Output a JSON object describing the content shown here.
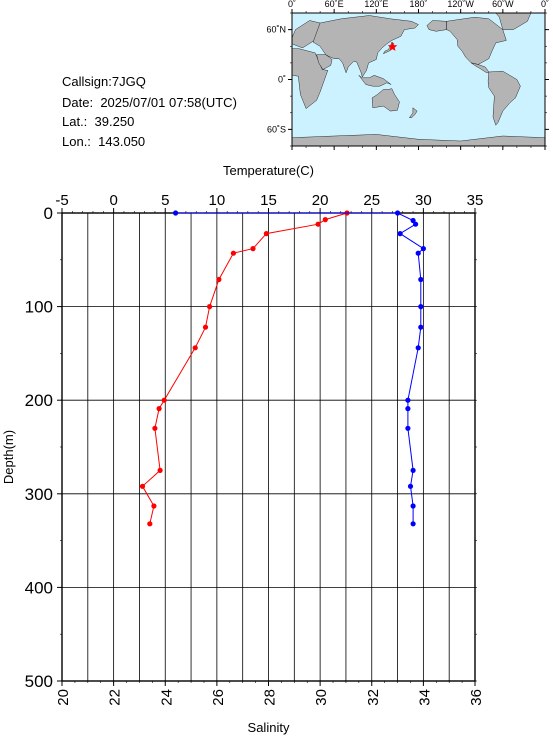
{
  "station": {
    "callsign_label": "Callsign:",
    "callsign": "7JGQ",
    "date_label": "Date:",
    "date": "2025/07/01 07:58(UTC)",
    "lat_label": "Lat.:",
    "lat": "39.250",
    "lon_label": "Lon.:",
    "lon": "143.050"
  },
  "map": {
    "top_labels": [
      "0˚",
      "60˚E",
      "120˚E",
      "180˚",
      "120˚W",
      "60˚W",
      "0˚"
    ],
    "left_labels": [
      "60˚N",
      "0˚",
      "60˚S"
    ],
    "ocean_color": "#ccf2ff",
    "land_color": "#b4b4b4",
    "marker_color": "#ff0000",
    "marker": {
      "lon": 143.05,
      "lat": 39.25
    }
  },
  "chart_data": {
    "type": "line",
    "top_axis": {
      "label": "Temperature(C)",
      "range": [
        -5,
        35
      ],
      "ticks": [
        -5,
        0,
        5,
        10,
        15,
        20,
        25,
        30,
        35
      ]
    },
    "bottom_axis": {
      "label": "Salinity",
      "range": [
        20,
        36
      ],
      "ticks": [
        20,
        22,
        24,
        26,
        28,
        30,
        32,
        34,
        36
      ]
    },
    "y_axis": {
      "label": "Depth(m)",
      "range": [
        0,
        500
      ],
      "inverted": true,
      "ticks": [
        0,
        100,
        200,
        300,
        400,
        500
      ]
    },
    "grid": true,
    "series": [
      {
        "name": "Temperature(C)",
        "axis": "top",
        "color": "#ff0000",
        "points": [
          {
            "value": 22.6,
            "depth": 0
          },
          {
            "value": 20.5,
            "depth": 7
          },
          {
            "value": 19.8,
            "depth": 12
          },
          {
            "value": 14.8,
            "depth": 22
          },
          {
            "value": 13.5,
            "depth": 38
          },
          {
            "value": 11.6,
            "depth": 43
          },
          {
            "value": 10.2,
            "depth": 71
          },
          {
            "value": 9.3,
            "depth": 100
          },
          {
            "value": 8.9,
            "depth": 122
          },
          {
            "value": 7.9,
            "depth": 144
          },
          {
            "value": 4.9,
            "depth": 200
          },
          {
            "value": 4.4,
            "depth": 209
          },
          {
            "value": 4.0,
            "depth": 230
          },
          {
            "value": 4.5,
            "depth": 275
          },
          {
            "value": 2.8,
            "depth": 292
          },
          {
            "value": 3.9,
            "depth": 313
          },
          {
            "value": 3.5,
            "depth": 332
          }
        ]
      },
      {
        "name": "Salinity",
        "axis": "bottom",
        "color": "#0000ff",
        "points": [
          {
            "value": 24.4,
            "depth": 0
          },
          {
            "value": 33.0,
            "depth": 0
          },
          {
            "value": 33.6,
            "depth": 8
          },
          {
            "value": 33.7,
            "depth": 12
          },
          {
            "value": 33.1,
            "depth": 22
          },
          {
            "value": 34.0,
            "depth": 38
          },
          {
            "value": 33.8,
            "depth": 43
          },
          {
            "value": 33.9,
            "depth": 71
          },
          {
            "value": 33.9,
            "depth": 100
          },
          {
            "value": 33.9,
            "depth": 122
          },
          {
            "value": 33.8,
            "depth": 144
          },
          {
            "value": 33.4,
            "depth": 200
          },
          {
            "value": 33.4,
            "depth": 209
          },
          {
            "value": 33.4,
            "depth": 230
          },
          {
            "value": 33.6,
            "depth": 275
          },
          {
            "value": 33.5,
            "depth": 292
          },
          {
            "value": 33.6,
            "depth": 313
          },
          {
            "value": 33.6,
            "depth": 332
          }
        ]
      }
    ]
  }
}
